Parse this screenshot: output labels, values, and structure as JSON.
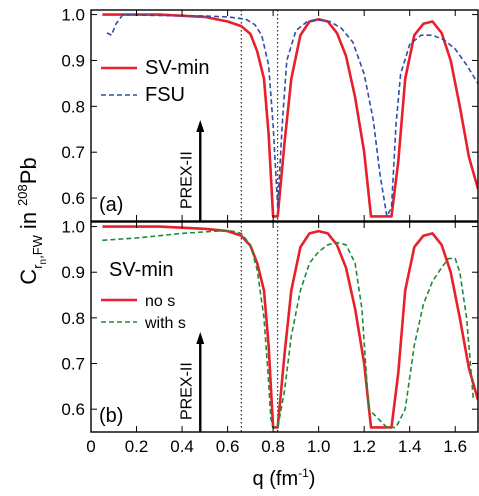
{
  "figure": {
    "ylabel_main": "C",
    "ylabel_sub1": "r",
    "ylabel_sub1b": "n",
    "ylabel_sub2": ",FW",
    "ylabel_in": "in",
    "ylabel_sup": "208",
    "ylabel_elem": "Pb",
    "xlabel_main": "q (fm",
    "xlabel_sup": "-1",
    "xlabel_close": ")"
  },
  "chart_data": [
    {
      "type": "line",
      "panel_label": "(a)",
      "annotation": "PREX-II",
      "arrow_q": 0.48,
      "vlines": [
        0.66,
        0.82
      ],
      "xlim": [
        0,
        1.7
      ],
      "ylim": [
        0.55,
        1.01
      ],
      "xticks": [
        0,
        0.2,
        0.4,
        0.6,
        0.8,
        1.0,
        1.2,
        1.4,
        1.6
      ],
      "xtick_labels": [
        "0",
        "0.2",
        "0.4",
        "0.6",
        "0.8",
        "1.0",
        "1.2",
        "1.4",
        "1.6"
      ],
      "yticks": [
        0.6,
        0.7,
        0.8,
        0.9,
        1.0
      ],
      "ytick_labels": [
        "0.6",
        "0.7",
        "0.8",
        "0.9",
        "1.0"
      ],
      "legend_position": "middle-left",
      "series": [
        {
          "name": "SV-min",
          "color": "#e8202a",
          "dash": "solid",
          "x": [
            0.05,
            0.3,
            0.5,
            0.6,
            0.66,
            0.7,
            0.73,
            0.76,
            0.78,
            0.8,
            0.82,
            0.85,
            0.88,
            0.92,
            0.96,
            1.0,
            1.04,
            1.08,
            1.12,
            1.16,
            1.2,
            1.23,
            1.26,
            1.32,
            1.35,
            1.38,
            1.42,
            1.46,
            1.5,
            1.54,
            1.58,
            1.62,
            1.66,
            1.7
          ],
          "y": [
            1.0,
            1.0,
            0.995,
            0.985,
            0.975,
            0.958,
            0.92,
            0.86,
            0.74,
            0.56,
            0.56,
            0.72,
            0.86,
            0.955,
            0.985,
            0.99,
            0.985,
            0.96,
            0.91,
            0.82,
            0.7,
            0.56,
            0.56,
            0.56,
            0.68,
            0.86,
            0.955,
            0.98,
            0.985,
            0.96,
            0.9,
            0.8,
            0.69,
            0.62
          ]
        },
        {
          "name": "FSU",
          "color": "#2f4fa8",
          "dash": "dashed",
          "x": [
            0.07,
            0.09,
            0.11,
            0.14,
            0.3,
            0.5,
            0.6,
            0.68,
            0.72,
            0.75,
            0.78,
            0.8,
            0.82,
            0.84,
            0.86,
            0.9,
            0.95,
            1.0,
            1.05,
            1.1,
            1.15,
            1.2,
            1.24,
            1.27,
            1.3,
            1.32,
            1.34,
            1.36,
            1.4,
            1.45,
            1.5,
            1.55,
            1.6,
            1.65,
            1.7
          ],
          "y": [
            0.96,
            0.955,
            0.98,
            1.0,
            0.998,
            0.997,
            0.995,
            0.99,
            0.978,
            0.955,
            0.89,
            0.76,
            0.58,
            0.76,
            0.9,
            0.965,
            0.985,
            0.988,
            0.985,
            0.97,
            0.94,
            0.87,
            0.77,
            0.65,
            0.56,
            0.58,
            0.76,
            0.87,
            0.935,
            0.955,
            0.955,
            0.945,
            0.925,
            0.89,
            0.85
          ]
        }
      ]
    },
    {
      "type": "line",
      "panel_label": "(b)",
      "annotation": "PREX-II",
      "legend_title": "SV-min",
      "arrow_q": 0.48,
      "vlines": [
        0.66,
        0.82
      ],
      "xlim": [
        0,
        1.7
      ],
      "ylim": [
        0.55,
        1.01
      ],
      "xticks": [
        0,
        0.2,
        0.4,
        0.6,
        0.8,
        1.0,
        1.2,
        1.4,
        1.6
      ],
      "xtick_labels": [
        "0",
        "0.2",
        "0.4",
        "0.6",
        "0.8",
        "1.0",
        "1.2",
        "1.4",
        "1.6"
      ],
      "yticks": [
        0.6,
        0.7,
        0.8,
        0.9,
        1.0
      ],
      "ytick_labels": [
        "0.6",
        "0.7",
        "0.8",
        "0.9",
        "1.0"
      ],
      "legend_position": "middle-left",
      "series": [
        {
          "name": "no s",
          "color": "#e8202a",
          "dash": "solid",
          "x": [
            0.05,
            0.3,
            0.5,
            0.6,
            0.66,
            0.7,
            0.73,
            0.76,
            0.78,
            0.8,
            0.82,
            0.85,
            0.88,
            0.92,
            0.96,
            1.0,
            1.04,
            1.08,
            1.12,
            1.16,
            1.2,
            1.23,
            1.26,
            1.32,
            1.35,
            1.38,
            1.42,
            1.46,
            1.5,
            1.54,
            1.58,
            1.62,
            1.66,
            1.7
          ],
          "y": [
            1.0,
            1.0,
            0.995,
            0.99,
            0.98,
            0.958,
            0.92,
            0.86,
            0.74,
            0.56,
            0.56,
            0.72,
            0.86,
            0.955,
            0.985,
            0.99,
            0.985,
            0.96,
            0.91,
            0.82,
            0.7,
            0.56,
            0.56,
            0.56,
            0.68,
            0.86,
            0.955,
            0.98,
            0.985,
            0.96,
            0.9,
            0.8,
            0.69,
            0.62
          ]
        },
        {
          "name": "with s",
          "color": "#1f8a3a",
          "dash": "dashed",
          "x": [
            0.05,
            0.2,
            0.4,
            0.55,
            0.62,
            0.66,
            0.7,
            0.73,
            0.76,
            0.78,
            0.79,
            0.8,
            0.82,
            0.85,
            0.88,
            0.92,
            0.96,
            1.0,
            1.04,
            1.08,
            1.12,
            1.16,
            1.19,
            1.22,
            1.3,
            1.34,
            1.38,
            1.42,
            1.46,
            1.5,
            1.54,
            1.57,
            1.6,
            1.62,
            1.65,
            1.68
          ],
          "y": [
            0.97,
            0.975,
            0.985,
            0.99,
            0.99,
            0.985,
            0.96,
            0.905,
            0.8,
            0.66,
            0.58,
            0.56,
            0.56,
            0.64,
            0.76,
            0.86,
            0.92,
            0.945,
            0.96,
            0.965,
            0.96,
            0.92,
            0.82,
            0.6,
            0.56,
            0.56,
            0.6,
            0.74,
            0.83,
            0.88,
            0.91,
            0.93,
            0.93,
            0.9,
            0.8,
            0.62
          ]
        }
      ]
    }
  ]
}
